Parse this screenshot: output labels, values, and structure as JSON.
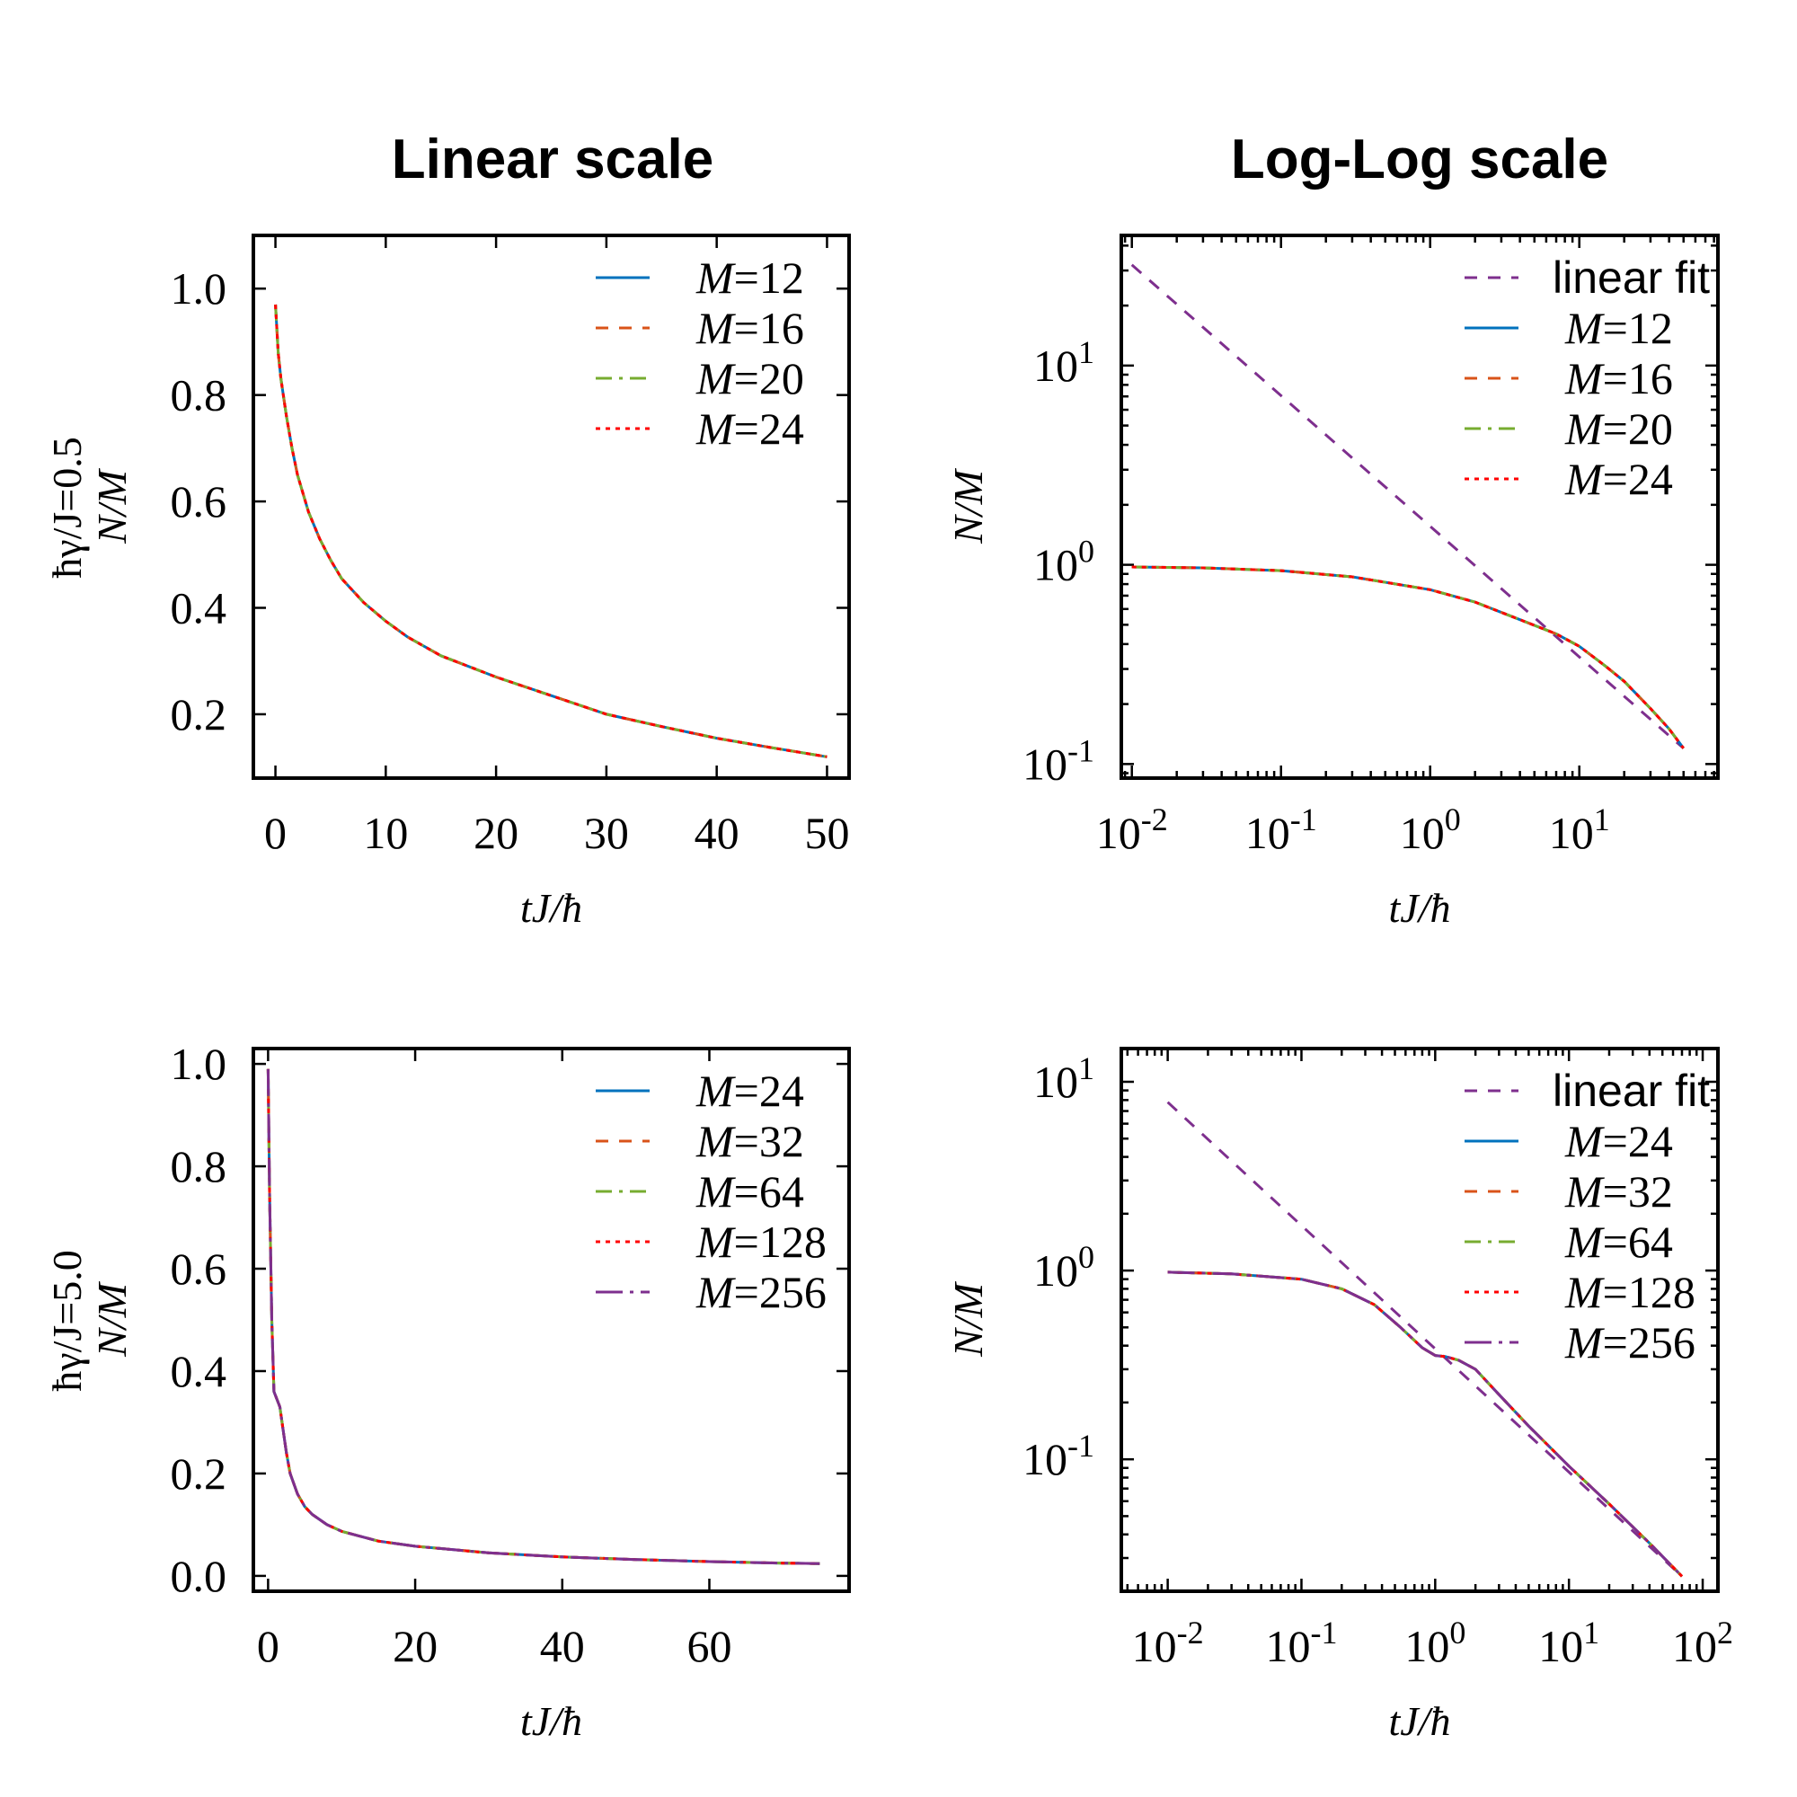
{
  "titles": [
    "Linear scale",
    "Log-Log scale"
  ],
  "row_labels": [
    "ħγ/J=0.5",
    "ħγ/J=5.0"
  ],
  "colors": {
    "M=12": "#0072bd",
    "M=24_blue": "#0072bd",
    "orange": "#d95319",
    "green": "#77ac30",
    "red": "#ff0000",
    "purple": "#7e2f8e"
  },
  "chart_data": [
    {
      "type": "line",
      "title": "Linear scale",
      "row_label": "ħγ/J=0.5",
      "xlabel": "tJ/ħ",
      "ylabel": "N/M",
      "xlim": [
        -2,
        52
      ],
      "ylim": [
        0.08,
        1.1
      ],
      "xticks": [
        0,
        10,
        20,
        30,
        40,
        50
      ],
      "yticks": [
        0.2,
        0.4,
        0.6,
        0.8,
        1.0
      ],
      "ytick_labels": [
        "0.2",
        "0.4",
        "0.6",
        "0.8",
        "1.0"
      ],
      "legend_position": "top-right",
      "x": [
        0,
        0.25,
        0.5,
        1,
        1.5,
        2,
        3,
        4,
        5,
        6,
        8,
        10,
        12,
        15,
        20,
        25,
        30,
        35,
        40,
        45,
        50
      ],
      "series": [
        {
          "name": "M=12",
          "style": "solid",
          "color": "#0072bd",
          "values": [
            0.97,
            0.88,
            0.83,
            0.76,
            0.7,
            0.65,
            0.58,
            0.53,
            0.49,
            0.455,
            0.41,
            0.375,
            0.345,
            0.31,
            0.27,
            0.235,
            0.2,
            0.177,
            0.155,
            0.137,
            0.12
          ]
        },
        {
          "name": "M=16",
          "style": "dash",
          "color": "#d95319",
          "values": [
            0.97,
            0.88,
            0.83,
            0.76,
            0.7,
            0.65,
            0.58,
            0.53,
            0.49,
            0.455,
            0.41,
            0.375,
            0.345,
            0.31,
            0.27,
            0.235,
            0.2,
            0.177,
            0.155,
            0.137,
            0.12
          ]
        },
        {
          "name": "M=20",
          "style": "dashdot",
          "color": "#77ac30",
          "values": [
            0.97,
            0.88,
            0.83,
            0.76,
            0.7,
            0.65,
            0.58,
            0.53,
            0.49,
            0.455,
            0.41,
            0.375,
            0.345,
            0.31,
            0.27,
            0.235,
            0.2,
            0.177,
            0.155,
            0.137,
            0.12
          ]
        },
        {
          "name": "M=24",
          "style": "dot",
          "color": "#ff0000",
          "values": [
            0.97,
            0.88,
            0.83,
            0.76,
            0.7,
            0.65,
            0.58,
            0.53,
            0.49,
            0.455,
            0.41,
            0.375,
            0.345,
            0.31,
            0.27,
            0.235,
            0.2,
            0.177,
            0.155,
            0.137,
            0.12
          ]
        }
      ]
    },
    {
      "type": "line",
      "title": "Log-Log scale",
      "row_label": "",
      "xlabel": "tJ/ħ",
      "ylabel": "N/M",
      "xscale": "log",
      "yscale": "log",
      "xlim": [
        0.0085,
        85
      ],
      "ylim": [
        0.085,
        45
      ],
      "xticks": [
        0.01,
        0.1,
        1,
        10
      ],
      "xtick_labels": [
        [
          "10",
          "-2"
        ],
        [
          "10",
          "-1"
        ],
        [
          "10",
          "0"
        ],
        [
          "10",
          "1"
        ]
      ],
      "yticks": [
        0.1,
        1,
        10
      ],
      "ytick_labels": [
        [
          "10",
          "-1"
        ],
        [
          "10",
          "0"
        ],
        [
          "10",
          "1"
        ]
      ],
      "legend_position": "top-right",
      "fit": {
        "name": "linear fit",
        "style": "dash",
        "color": "#7e2f8e",
        "x": [
          0.01,
          50
        ],
        "values": [
          32,
          0.12
        ]
      },
      "x": [
        0.01,
        0.03,
        0.1,
        0.3,
        1,
        2,
        4,
        7,
        10,
        15,
        20,
        30,
        40,
        50
      ],
      "series": [
        {
          "name": "M=12",
          "style": "solid",
          "color": "#0072bd",
          "values": [
            0.975,
            0.965,
            0.935,
            0.87,
            0.75,
            0.65,
            0.53,
            0.45,
            0.39,
            0.31,
            0.26,
            0.19,
            0.15,
            0.12
          ]
        },
        {
          "name": "M=16",
          "style": "dash",
          "color": "#d95319",
          "values": [
            0.975,
            0.965,
            0.935,
            0.87,
            0.75,
            0.65,
            0.53,
            0.45,
            0.39,
            0.31,
            0.26,
            0.19,
            0.15,
            0.12
          ]
        },
        {
          "name": "M=20",
          "style": "dashdot",
          "color": "#77ac30",
          "values": [
            0.975,
            0.965,
            0.935,
            0.87,
            0.75,
            0.65,
            0.53,
            0.45,
            0.39,
            0.31,
            0.26,
            0.19,
            0.15,
            0.12
          ]
        },
        {
          "name": "M=24",
          "style": "dot",
          "color": "#ff0000",
          "values": [
            0.975,
            0.965,
            0.935,
            0.87,
            0.75,
            0.65,
            0.53,
            0.45,
            0.39,
            0.31,
            0.26,
            0.19,
            0.15,
            0.12
          ]
        }
      ]
    },
    {
      "type": "line",
      "title": "",
      "row_label": "ħγ/J=5.0",
      "xlabel": "tJ/ħ",
      "ylabel": "N/M",
      "xlim": [
        -2,
        79
      ],
      "ylim": [
        -0.03,
        1.03
      ],
      "xticks": [
        0,
        20,
        40,
        60
      ],
      "yticks": [
        0.0,
        0.2,
        0.4,
        0.6,
        0.8,
        1.0
      ],
      "ytick_labels": [
        "0.0",
        "0.2",
        "0.4",
        "0.6",
        "0.8",
        "1.0"
      ],
      "legend_position": "top-right",
      "x": [
        0,
        0.2,
        0.5,
        0.8,
        1.2,
        1.6,
        2,
        2.5,
        3,
        4,
        5,
        6,
        8,
        10,
        15,
        20,
        30,
        40,
        50,
        60,
        70,
        75
      ],
      "series": [
        {
          "name": "M=24",
          "style": "solid",
          "color": "#0072bd",
          "values": [
            0.99,
            0.75,
            0.5,
            0.36,
            0.345,
            0.33,
            0.29,
            0.24,
            0.2,
            0.16,
            0.135,
            0.12,
            0.1,
            0.087,
            0.068,
            0.058,
            0.045,
            0.037,
            0.032,
            0.028,
            0.025,
            0.024
          ]
        },
        {
          "name": "M=32",
          "style": "dash",
          "color": "#d95319",
          "values": [
            0.99,
            0.75,
            0.5,
            0.36,
            0.345,
            0.33,
            0.29,
            0.24,
            0.2,
            0.16,
            0.135,
            0.12,
            0.1,
            0.087,
            0.068,
            0.058,
            0.045,
            0.037,
            0.032,
            0.028,
            0.025,
            0.024
          ]
        },
        {
          "name": "M=64",
          "style": "dashdot",
          "color": "#77ac30",
          "values": [
            0.99,
            0.75,
            0.5,
            0.36,
            0.345,
            0.33,
            0.29,
            0.24,
            0.2,
            0.16,
            0.135,
            0.12,
            0.1,
            0.087,
            0.068,
            0.058,
            0.045,
            0.037,
            0.032,
            0.028,
            0.025,
            0.024
          ]
        },
        {
          "name": "M=128",
          "style": "dot",
          "color": "#ff0000",
          "values": [
            0.99,
            0.75,
            0.5,
            0.36,
            0.345,
            0.33,
            0.29,
            0.24,
            0.2,
            0.16,
            0.135,
            0.12,
            0.1,
            0.087,
            0.068,
            0.058,
            0.045,
            0.037,
            0.032,
            0.028,
            0.025,
            0.024
          ]
        },
        {
          "name": "M=256",
          "style": "longdashdot",
          "color": "#7e2f8e",
          "values": [
            0.99,
            0.75,
            0.5,
            0.36,
            0.345,
            0.33,
            0.29,
            0.24,
            0.2,
            0.16,
            0.135,
            0.12,
            0.1,
            0.087,
            0.068,
            0.058,
            0.045,
            0.037,
            0.032,
            0.028,
            0.025,
            0.024
          ]
        }
      ]
    },
    {
      "type": "line",
      "title": "",
      "row_label": "",
      "xlabel": "tJ/ħ",
      "ylabel": "N/M",
      "xscale": "log",
      "yscale": "log",
      "xlim": [
        0.0045,
        130
      ],
      "ylim": [
        0.02,
        15
      ],
      "xticks": [
        0.01,
        0.1,
        1,
        10,
        100
      ],
      "xtick_labels": [
        [
          "10",
          "-2"
        ],
        [
          "10",
          "-1"
        ],
        [
          "10",
          "0"
        ],
        [
          "10",
          "1"
        ],
        [
          "10",
          "2"
        ]
      ],
      "yticks": [
        0.1,
        1,
        10
      ],
      "ytick_labels": [
        [
          "10",
          "-1"
        ],
        [
          "10",
          "0"
        ],
        [
          "10",
          "1"
        ]
      ],
      "legend_position": "top-right",
      "fit": {
        "name": "linear fit",
        "style": "dash",
        "color": "#7e2f8e",
        "x": [
          0.01,
          70
        ],
        "values": [
          7.8,
          0.024
        ]
      },
      "x": [
        0.01,
        0.03,
        0.1,
        0.2,
        0.35,
        0.55,
        0.8,
        1.0,
        1.2,
        1.5,
        2,
        3,
        5,
        10,
        20,
        40,
        70
      ],
      "series": [
        {
          "name": "M=24",
          "style": "solid",
          "color": "#0072bd",
          "values": [
            0.98,
            0.96,
            0.9,
            0.8,
            0.66,
            0.5,
            0.39,
            0.355,
            0.35,
            0.335,
            0.3,
            0.22,
            0.15,
            0.092,
            0.058,
            0.036,
            0.024
          ]
        },
        {
          "name": "M=32",
          "style": "dash",
          "color": "#d95319",
          "values": [
            0.98,
            0.96,
            0.9,
            0.8,
            0.66,
            0.5,
            0.39,
            0.355,
            0.35,
            0.335,
            0.3,
            0.22,
            0.15,
            0.092,
            0.058,
            0.036,
            0.024
          ]
        },
        {
          "name": "M=64",
          "style": "dashdot",
          "color": "#77ac30",
          "values": [
            0.98,
            0.96,
            0.9,
            0.8,
            0.66,
            0.5,
            0.39,
            0.355,
            0.35,
            0.335,
            0.3,
            0.22,
            0.15,
            0.092,
            0.058,
            0.036,
            0.024
          ]
        },
        {
          "name": "M=128",
          "style": "dot",
          "color": "#ff0000",
          "values": [
            0.98,
            0.96,
            0.9,
            0.8,
            0.66,
            0.5,
            0.39,
            0.355,
            0.35,
            0.335,
            0.3,
            0.22,
            0.15,
            0.092,
            0.058,
            0.036,
            0.024
          ]
        },
        {
          "name": "M=256",
          "style": "longdashdot",
          "color": "#7e2f8e",
          "values": [
            0.98,
            0.96,
            0.9,
            0.8,
            0.66,
            0.5,
            0.39,
            0.355,
            0.35,
            0.335,
            0.3,
            0.22,
            0.15,
            0.092,
            0.058,
            0.036,
            0.024
          ]
        }
      ]
    }
  ]
}
